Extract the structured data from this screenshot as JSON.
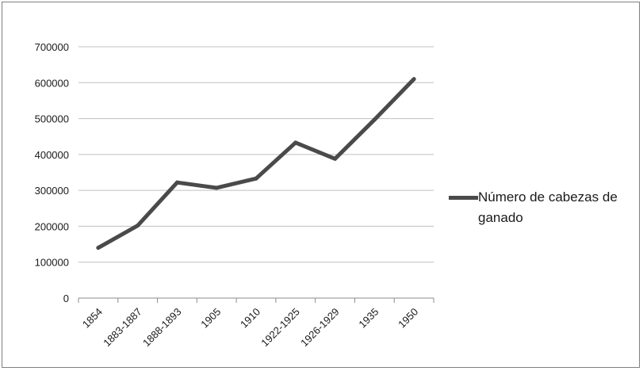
{
  "chart_data": {
    "type": "line",
    "title": "",
    "xlabel": "",
    "ylabel": "",
    "categories": [
      "1854",
      "1883-1887",
      "1888-1893",
      "1905",
      "1910",
      "1922-1925",
      "1926-1929",
      "1935",
      "1950"
    ],
    "series": [
      {
        "name": "Número de cabezas de ganado",
        "values": [
          140000,
          202000,
          322000,
          307000,
          333000,
          433000,
          388000,
          497000,
          610000
        ],
        "color": "#4a4a4a"
      }
    ],
    "ylim": [
      0,
      700000
    ],
    "yticks": [
      "0",
      "100000",
      "200000",
      "300000",
      "400000",
      "500000",
      "600000",
      "700000"
    ],
    "grid": true,
    "legend_position": "right"
  }
}
